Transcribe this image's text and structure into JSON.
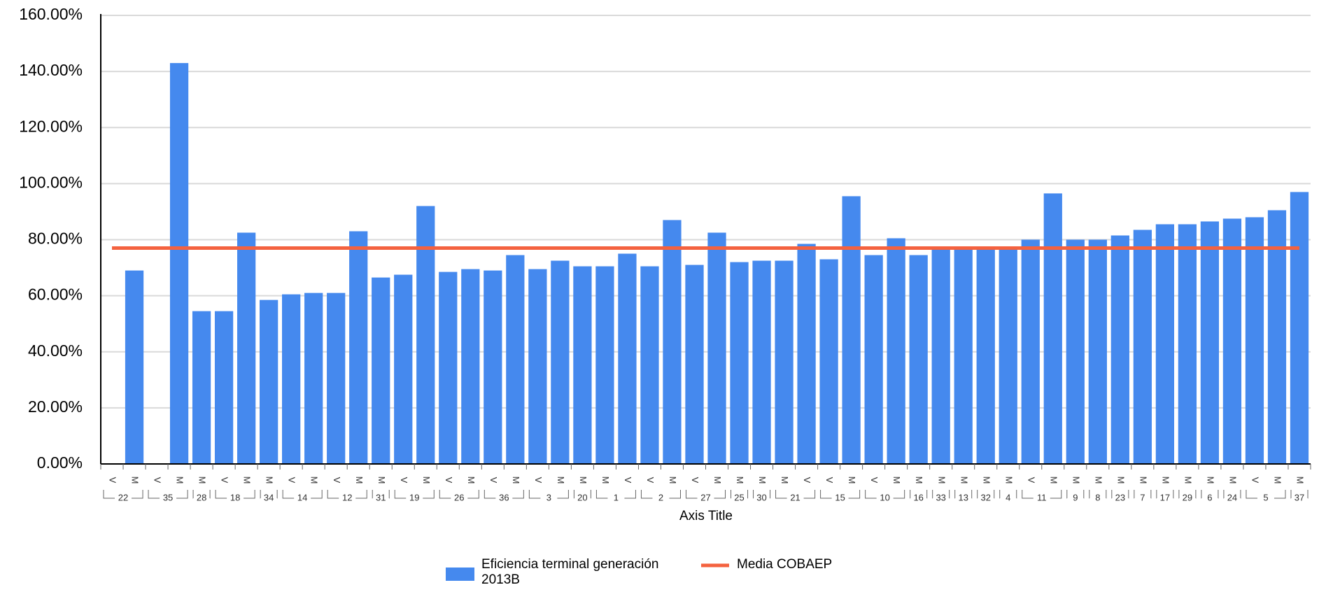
{
  "chart_data": {
    "type": "bar",
    "x_label": "Axis Title",
    "groups": [
      {
        "label": "22",
        "categories": [
          "V",
          "M"
        ]
      },
      {
        "label": "35",
        "categories": [
          "V",
          "M"
        ]
      },
      {
        "label": "28",
        "categories": [
          "M"
        ]
      },
      {
        "label": "18",
        "categories": [
          "V",
          "M"
        ]
      },
      {
        "label": "34",
        "categories": [
          "M"
        ]
      },
      {
        "label": "14",
        "categories": [
          "V",
          "M"
        ]
      },
      {
        "label": "12",
        "categories": [
          "V",
          "M"
        ]
      },
      {
        "label": "31",
        "categories": [
          "M"
        ]
      },
      {
        "label": "19",
        "categories": [
          "V",
          "M"
        ]
      },
      {
        "label": "26",
        "categories": [
          "V",
          "M"
        ]
      },
      {
        "label": "36",
        "categories": [
          "V",
          "M"
        ]
      },
      {
        "label": "3",
        "categories": [
          "V",
          "M"
        ]
      },
      {
        "label": "20",
        "categories": [
          "M"
        ]
      },
      {
        "label": "1",
        "categories": [
          "M",
          "V"
        ]
      },
      {
        "label": "2",
        "categories": [
          "V",
          "M"
        ]
      },
      {
        "label": "27",
        "categories": [
          "V",
          "M"
        ]
      },
      {
        "label": "25",
        "categories": [
          "M"
        ]
      },
      {
        "label": "30",
        "categories": [
          "M"
        ]
      },
      {
        "label": "21",
        "categories": [
          "M",
          "V"
        ]
      },
      {
        "label": "15",
        "categories": [
          "V",
          "M"
        ]
      },
      {
        "label": "10",
        "categories": [
          "V",
          "M"
        ]
      },
      {
        "label": "16",
        "categories": [
          "M"
        ]
      },
      {
        "label": "33",
        "categories": [
          "M"
        ]
      },
      {
        "label": "13",
        "categories": [
          "M"
        ]
      },
      {
        "label": "32",
        "categories": [
          "M"
        ]
      },
      {
        "label": "4",
        "categories": [
          "M"
        ]
      },
      {
        "label": "11",
        "categories": [
          "V",
          "M"
        ]
      },
      {
        "label": "9",
        "categories": [
          "M"
        ]
      },
      {
        "label": "8",
        "categories": [
          "M"
        ]
      },
      {
        "label": "23",
        "categories": [
          "M"
        ]
      },
      {
        "label": "7",
        "categories": [
          "M"
        ]
      },
      {
        "label": "17",
        "categories": [
          "M"
        ]
      },
      {
        "label": "29",
        "categories": [
          "M"
        ]
      },
      {
        "label": "6",
        "categories": [
          "M"
        ]
      },
      {
        "label": "24",
        "categories": [
          "M"
        ]
      },
      {
        "label": "5",
        "categories": [
          "V",
          "M"
        ]
      },
      {
        "label": "37",
        "categories": [
          "M"
        ]
      }
    ],
    "series": [
      {
        "name": "Eficiencia terminal generación 2013B",
        "type": "bar",
        "color": "#4589ee",
        "values": [
          null,
          69,
          null,
          143,
          54.5,
          54.5,
          82.5,
          58.5,
          60.5,
          61,
          61,
          83,
          66.5,
          67.5,
          92,
          68.5,
          69.5,
          69,
          74.5,
          69.5,
          72.5,
          70.5,
          70.5,
          75,
          70.5,
          87,
          71,
          82.5,
          72,
          72.5,
          72.5,
          78.5,
          73,
          95.5,
          74.5,
          80.5,
          74.5,
          77,
          77,
          77,
          77.5,
          80,
          96.5,
          80,
          80,
          81.5,
          83.5,
          85.5,
          85.5,
          86.5,
          87.5,
          88,
          90.5,
          97
        ]
      },
      {
        "name": "Media COBAEP",
        "type": "line",
        "color": "#f4623f",
        "values": [
          77,
          77,
          77,
          77,
          77,
          77,
          77,
          77,
          77,
          77,
          77,
          77,
          77,
          77,
          77,
          77,
          77,
          77,
          77,
          77,
          77,
          77,
          77,
          77,
          77,
          77,
          77,
          77,
          77,
          77,
          77,
          77,
          77,
          77,
          77,
          77,
          77,
          77,
          77,
          77,
          77,
          77,
          77,
          77,
          77,
          77,
          77,
          77,
          77,
          77,
          77,
          77,
          77,
          77
        ]
      }
    ],
    "ylim": [
      0,
      160
    ],
    "yticks": [
      {
        "value": 0,
        "label": "0.00%"
      },
      {
        "value": 20,
        "label": "20.00%"
      },
      {
        "value": 40,
        "label": "40.00%"
      },
      {
        "value": 60,
        "label": "60.00%"
      },
      {
        "value": 80,
        "label": "80.00%"
      },
      {
        "value": 100,
        "label": "100.00%"
      },
      {
        "value": 120,
        "label": "120.00%"
      },
      {
        "value": 140,
        "label": "140.00%"
      },
      {
        "value": 160,
        "label": "160.00%"
      }
    ],
    "grid": true
  }
}
